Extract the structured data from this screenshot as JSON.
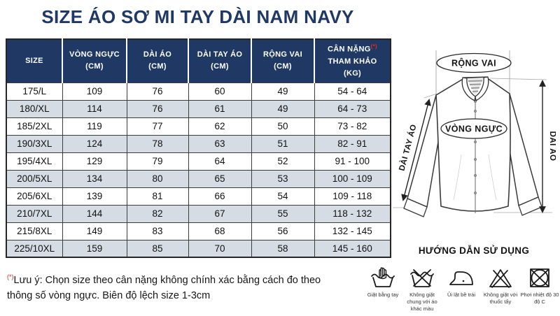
{
  "page": {
    "title": "SIZE ÁO SƠ MI TAY DÀI NAM NAVY"
  },
  "colors": {
    "navy": "#1F3864",
    "row_alt": "#D5DCE4",
    "asterisk_red": "#E8281E"
  },
  "table": {
    "columns": [
      {
        "label": "SIZE",
        "unit": ""
      },
      {
        "label": "VÒNG NGỰC",
        "unit": "(CM)"
      },
      {
        "label": "DÀI ÁO",
        "unit": "(CM)"
      },
      {
        "label": "DÀI TAY ÁO",
        "unit": "(CM)"
      },
      {
        "label": "RỘNG VAI",
        "unit": "(CM)"
      },
      {
        "label": "CÂN NẶNG",
        "asterisk": "(*)",
        "label2": "THAM KHẢO",
        "unit": "(KG)"
      }
    ],
    "rows": [
      [
        "175/L",
        "109",
        "76",
        "60",
        "49",
        "54 - 64"
      ],
      [
        "180/XL",
        "114",
        "76",
        "61",
        "49",
        "64 - 73"
      ],
      [
        "185/2XL",
        "119",
        "77",
        "62",
        "50",
        "73 - 82"
      ],
      [
        "190/3XL",
        "124",
        "78",
        "63",
        "51",
        "82 - 91"
      ],
      [
        "195/4XL",
        "129",
        "79",
        "64",
        "52",
        "91 - 100"
      ],
      [
        "200/5XL",
        "134",
        "80",
        "65",
        "53",
        "100 - 109"
      ],
      [
        "205/6XL",
        "139",
        "81",
        "66",
        "54",
        "109 - 118"
      ],
      [
        "210/7XL",
        "144",
        "82",
        "67",
        "55",
        "118 - 132"
      ],
      [
        "215/8XL",
        "149",
        "83",
        "68",
        "56",
        "132 - 145"
      ],
      [
        "225/10XL",
        "159",
        "85",
        "70",
        "58",
        "145 - 160"
      ]
    ]
  },
  "diagram": {
    "shoulder_label": "RỘNG VAI",
    "chest_label": "VÒNG NGỰC",
    "sleeve_label": "DÀI TAY ÁO",
    "length_label": "DÀI ÁO"
  },
  "care": {
    "heading": "HƯỚNG DẪN SỬ DỤNG",
    "items": [
      {
        "icon": "hand-wash-icon",
        "label": "Giặt bằng tay"
      },
      {
        "icon": "no-mixed-wash-icon",
        "label": "Không giặt chung với áo khác màu"
      },
      {
        "icon": "iron-inside-out-icon",
        "label": "Ủi lật bề trái"
      },
      {
        "icon": "no-bleach-icon",
        "label": "Không giặt với thuốc tẩy"
      },
      {
        "icon": "dry-30-degrees-icon",
        "label": "Phơi nhiệt độ 30 độ C"
      }
    ]
  },
  "note": {
    "asterisk": "(*)",
    "line1": "Lưu ý: Chọn size theo cân nặng không chính xác bằng cách đo theo",
    "line2": "thông số vòng ngực. Biên độ lệch size 1-3cm"
  }
}
